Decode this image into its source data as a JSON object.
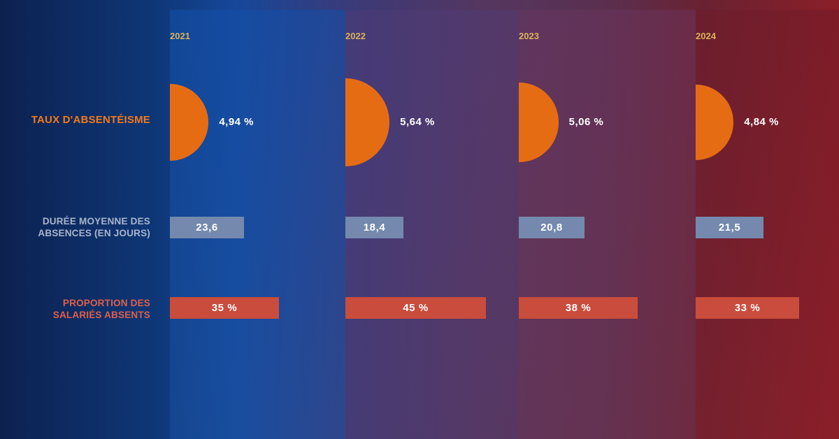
{
  "chart_data": {
    "type": "bar",
    "categories": [
      "2021",
      "2022",
      "2023",
      "2024"
    ],
    "series": [
      {
        "name": "TAUX D'ABSENTÉISME",
        "values": [
          4.94,
          5.64,
          5.06,
          4.84
        ],
        "labels": [
          "4,94 %",
          "5,64 %",
          "5,06 %",
          "4,84 %"
        ],
        "color": "#e66c14"
      },
      {
        "name": "DURÉE MOYENNE DES ABSENCES (EN JOURS)",
        "name_lines": [
          "DURÉE MOYENNE DES",
          "ABSENCES (EN JOURS)"
        ],
        "values": [
          23.6,
          18.4,
          20.8,
          21.5
        ],
        "labels": [
          "23,6",
          "18,4",
          "20,8",
          "21,5"
        ],
        "color": "#7489ad"
      },
      {
        "name": "PROPORTION DES SALARIÉS ABSENTS",
        "name_lines": [
          "PROPORTION DES",
          "SALARIÉS ABSENTS"
        ],
        "values": [
          35,
          45,
          38,
          33
        ],
        "labels": [
          "35 %",
          "45 %",
          "38 %",
          "33 %"
        ],
        "color": "#c94c3c"
      }
    ]
  }
}
